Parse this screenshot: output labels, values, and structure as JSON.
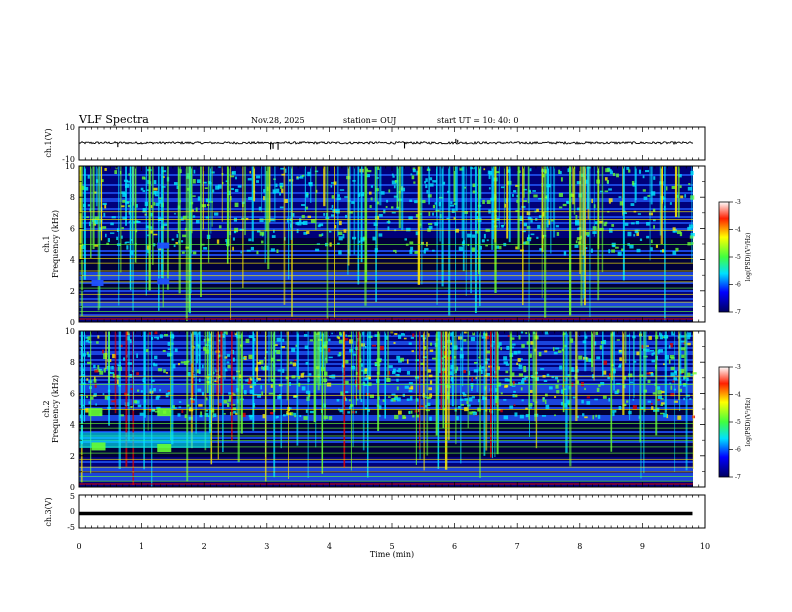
{
  "header": {
    "title": "VLF Spectra",
    "date": "Nov.28, 2025",
    "station": "station= OUJ",
    "start": "start  UT =   10: 40: 0"
  },
  "chart_data": [
    {
      "type": "line",
      "panel": "ch1",
      "ylabel": "ch.1(V)",
      "ylim": [
        -10,
        10
      ],
      "yticks": [
        "10",
        "-10"
      ],
      "x": [
        0,
        0.62,
        1.5,
        2.4,
        3.06,
        3.1,
        3.18,
        4.2,
        5.2,
        6.02,
        6.05,
        7.2,
        8.4,
        9.6,
        9.8
      ],
      "y": [
        0.5,
        -2.2,
        0.4,
        0.5,
        -3.6,
        -3.2,
        -3.8,
        0.4,
        -3.0,
        2.8,
        2.2,
        0.4,
        0.5,
        0.4,
        0.5
      ],
      "xlim": [
        0,
        10
      ]
    },
    {
      "type": "heatmap",
      "panel": "ch1-spectrogram",
      "ylabel_top": "ch.1",
      "ylabel": "Frequency  (kHz)",
      "ylim": [
        0,
        10
      ],
      "yticks": [
        "0",
        "2",
        "4",
        "6",
        "8",
        "10"
      ],
      "colorbar": {
        "label": "log(PSD)(V²/Hz)",
        "range": [
          -7,
          -3
        ],
        "ticks": [
          "-3",
          "-4",
          "-5",
          "-6",
          "-7"
        ]
      }
    },
    {
      "type": "heatmap",
      "panel": "ch2-spectrogram",
      "ylabel_top": "ch.2",
      "ylabel": "Frequency  (kHz)",
      "ylim": [
        0,
        10
      ],
      "yticks": [
        "0",
        "2",
        "4",
        "6",
        "8",
        "10"
      ],
      "colorbar": {
        "label": "log(PSD)(V²/Hz)",
        "range": [
          -7,
          -3
        ],
        "ticks": [
          "-3",
          "-4",
          "-5",
          "-6",
          "-7"
        ]
      }
    },
    {
      "type": "line",
      "panel": "ch3",
      "ylabel": "ch.3(V)",
      "ylim": [
        -5,
        5
      ],
      "yticks": [
        "5",
        "0",
        "-5"
      ],
      "x": [
        0,
        9.8
      ],
      "y": [
        -0.6,
        -0.6
      ],
      "xlim": [
        0,
        10
      ]
    }
  ],
  "xaxis": {
    "label": "Time  (min)",
    "ticks": [
      "0",
      "1",
      "2",
      "3",
      "4",
      "5",
      "6",
      "7",
      "8",
      "9",
      "10"
    ]
  },
  "colors": {
    "bg": "#00001e",
    "dark_blue": "#00008b",
    "blue": "#1e50ff",
    "cyan": "#00e6ff",
    "green": "#66ff33",
    "yellow": "#ffee00",
    "red": "#e00000"
  }
}
